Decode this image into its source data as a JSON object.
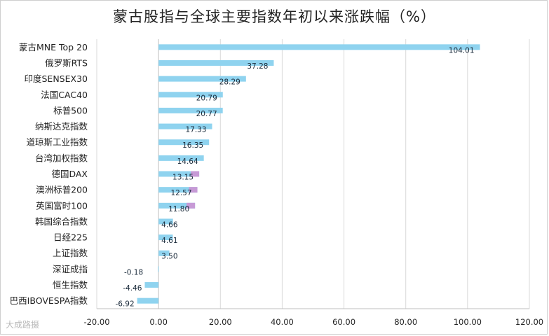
{
  "chart_data": {
    "type": "bar",
    "orientation": "horizontal",
    "title": "蒙古股指与全球主要指数年初以来涨跌幅（%）",
    "categories": [
      "蒙古MNE Top 20",
      "俄罗斯RTS",
      "印度SENSEX30",
      "法国CAC40",
      "标普500",
      "纳斯达克指数",
      "道琼斯工业指数",
      "台湾加权指数",
      "德国DAX",
      "澳洲标普200",
      "英国富时100",
      "韩国综合指数",
      "日经225",
      "上证指数",
      "深证成指",
      "恒生指数",
      "巴西IBOVESPA指数"
    ],
    "values": [
      104.01,
      37.28,
      28.29,
      20.79,
      20.77,
      17.33,
      16.35,
      14.64,
      13.15,
      12.57,
      11.8,
      4.66,
      4.61,
      3.5,
      -0.18,
      -4.46,
      -6.92
    ],
    "data_labels": [
      "104.01",
      "37.28",
      "28.29",
      "20.79",
      "20.77",
      "17.33",
      "16.35",
      "14.64",
      "13.15",
      "12.57",
      "11.80",
      "4.66",
      "4.61",
      "3.50",
      "-0.18",
      "-4.46",
      "-6.92"
    ],
    "xlim": [
      -20,
      120
    ],
    "xticks": [
      "-20.00",
      "0.00",
      "20.00",
      "40.00",
      "60.00",
      "80.00",
      "100.00",
      "120.00"
    ],
    "xtick_values": [
      -20,
      0,
      20,
      40,
      60,
      80,
      100,
      120
    ],
    "bar_color": "#8fd3ef",
    "highlight_color": "#c79ad6",
    "highlighted_categories": [
      "德国DAX",
      "澳洲标普200",
      "英国富时100"
    ],
    "grid": "vertical",
    "legend": "none"
  },
  "watermark": "大成路摄"
}
